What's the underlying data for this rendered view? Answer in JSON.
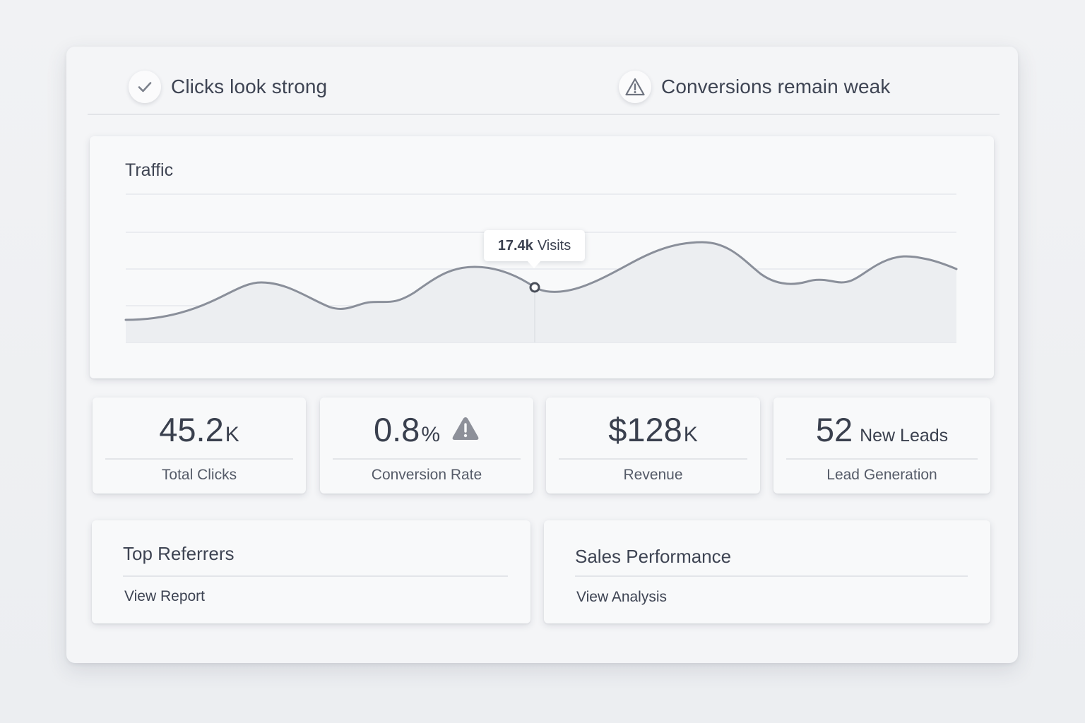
{
  "status": {
    "positive": {
      "text": "Clicks look strong",
      "icon": "check-icon"
    },
    "negative": {
      "text": "Conversions remain weak",
      "icon": "warning-triangle-icon"
    }
  },
  "traffic": {
    "title": "Traffic",
    "tooltip": {
      "value": "17.4k",
      "unit": "Visits"
    }
  },
  "kpis": {
    "clicks": {
      "value": "45.2",
      "suffix": "K",
      "label": "Total Clicks"
    },
    "conversion": {
      "value": "0.8",
      "suffix": "%",
      "label": "Conversion Rate",
      "icon": "warning-icon"
    },
    "revenue": {
      "value": "$128",
      "suffix": "K",
      "label": "Revenue"
    },
    "leads": {
      "value": "52",
      "unit": "New Leads",
      "label": "Lead Generation"
    }
  },
  "cards": {
    "referrers": {
      "title": "Top Referrers",
      "link": "View Report"
    },
    "sales": {
      "title": "Sales Performance",
      "link": "View Analysis"
    }
  },
  "colors": {
    "line": "#8a8f9a",
    "fill": "#eceef1",
    "grid": "#e6e8ec",
    "text": "#3b4150",
    "warning": "#8d9099"
  }
}
